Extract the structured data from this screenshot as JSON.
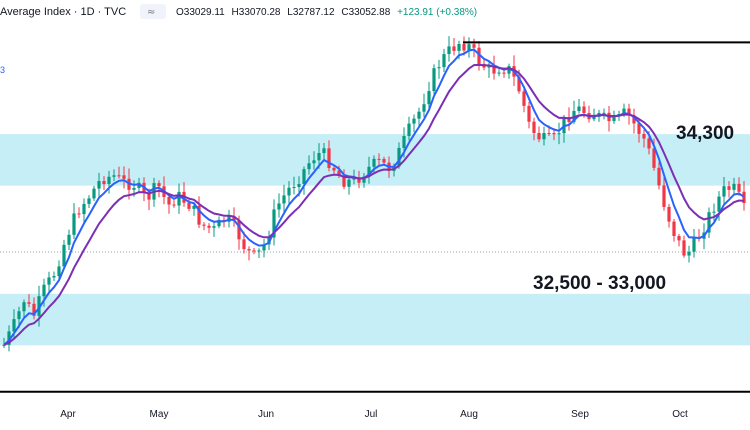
{
  "header": {
    "title": "Average Index · 1D · TVC",
    "open_label": "O",
    "open": "33029.11",
    "high_label": "H",
    "high": "33070.28",
    "low_label": "L",
    "low": "32787.12",
    "close_label": "C",
    "close": "33052.88",
    "change": "+123.91 (+0.38%)",
    "side_mark": "3"
  },
  "colors": {
    "up": "#089981",
    "down": "#f23645",
    "zone": "#c6eef7",
    "fast_ma": "#2962ff",
    "slow_ma": "#7b2fb5",
    "levels": "#000000"
  },
  "zones": {
    "upper": {
      "label": "34,300",
      "low": 34050,
      "high": 34550
    },
    "lower": {
      "label": "32,500 - 33,000",
      "low": 32500,
      "high": 33000
    }
  },
  "chart_data": {
    "type": "candlestick",
    "y_range": [
      31950,
      35580
    ],
    "resistance": 35440,
    "support": 32050,
    "months": [
      "Apr",
      "May",
      "Jun",
      "Jul",
      "Aug",
      "Sep",
      "Oct"
    ],
    "moving_averages": [
      "fast",
      "slow"
    ]
  }
}
